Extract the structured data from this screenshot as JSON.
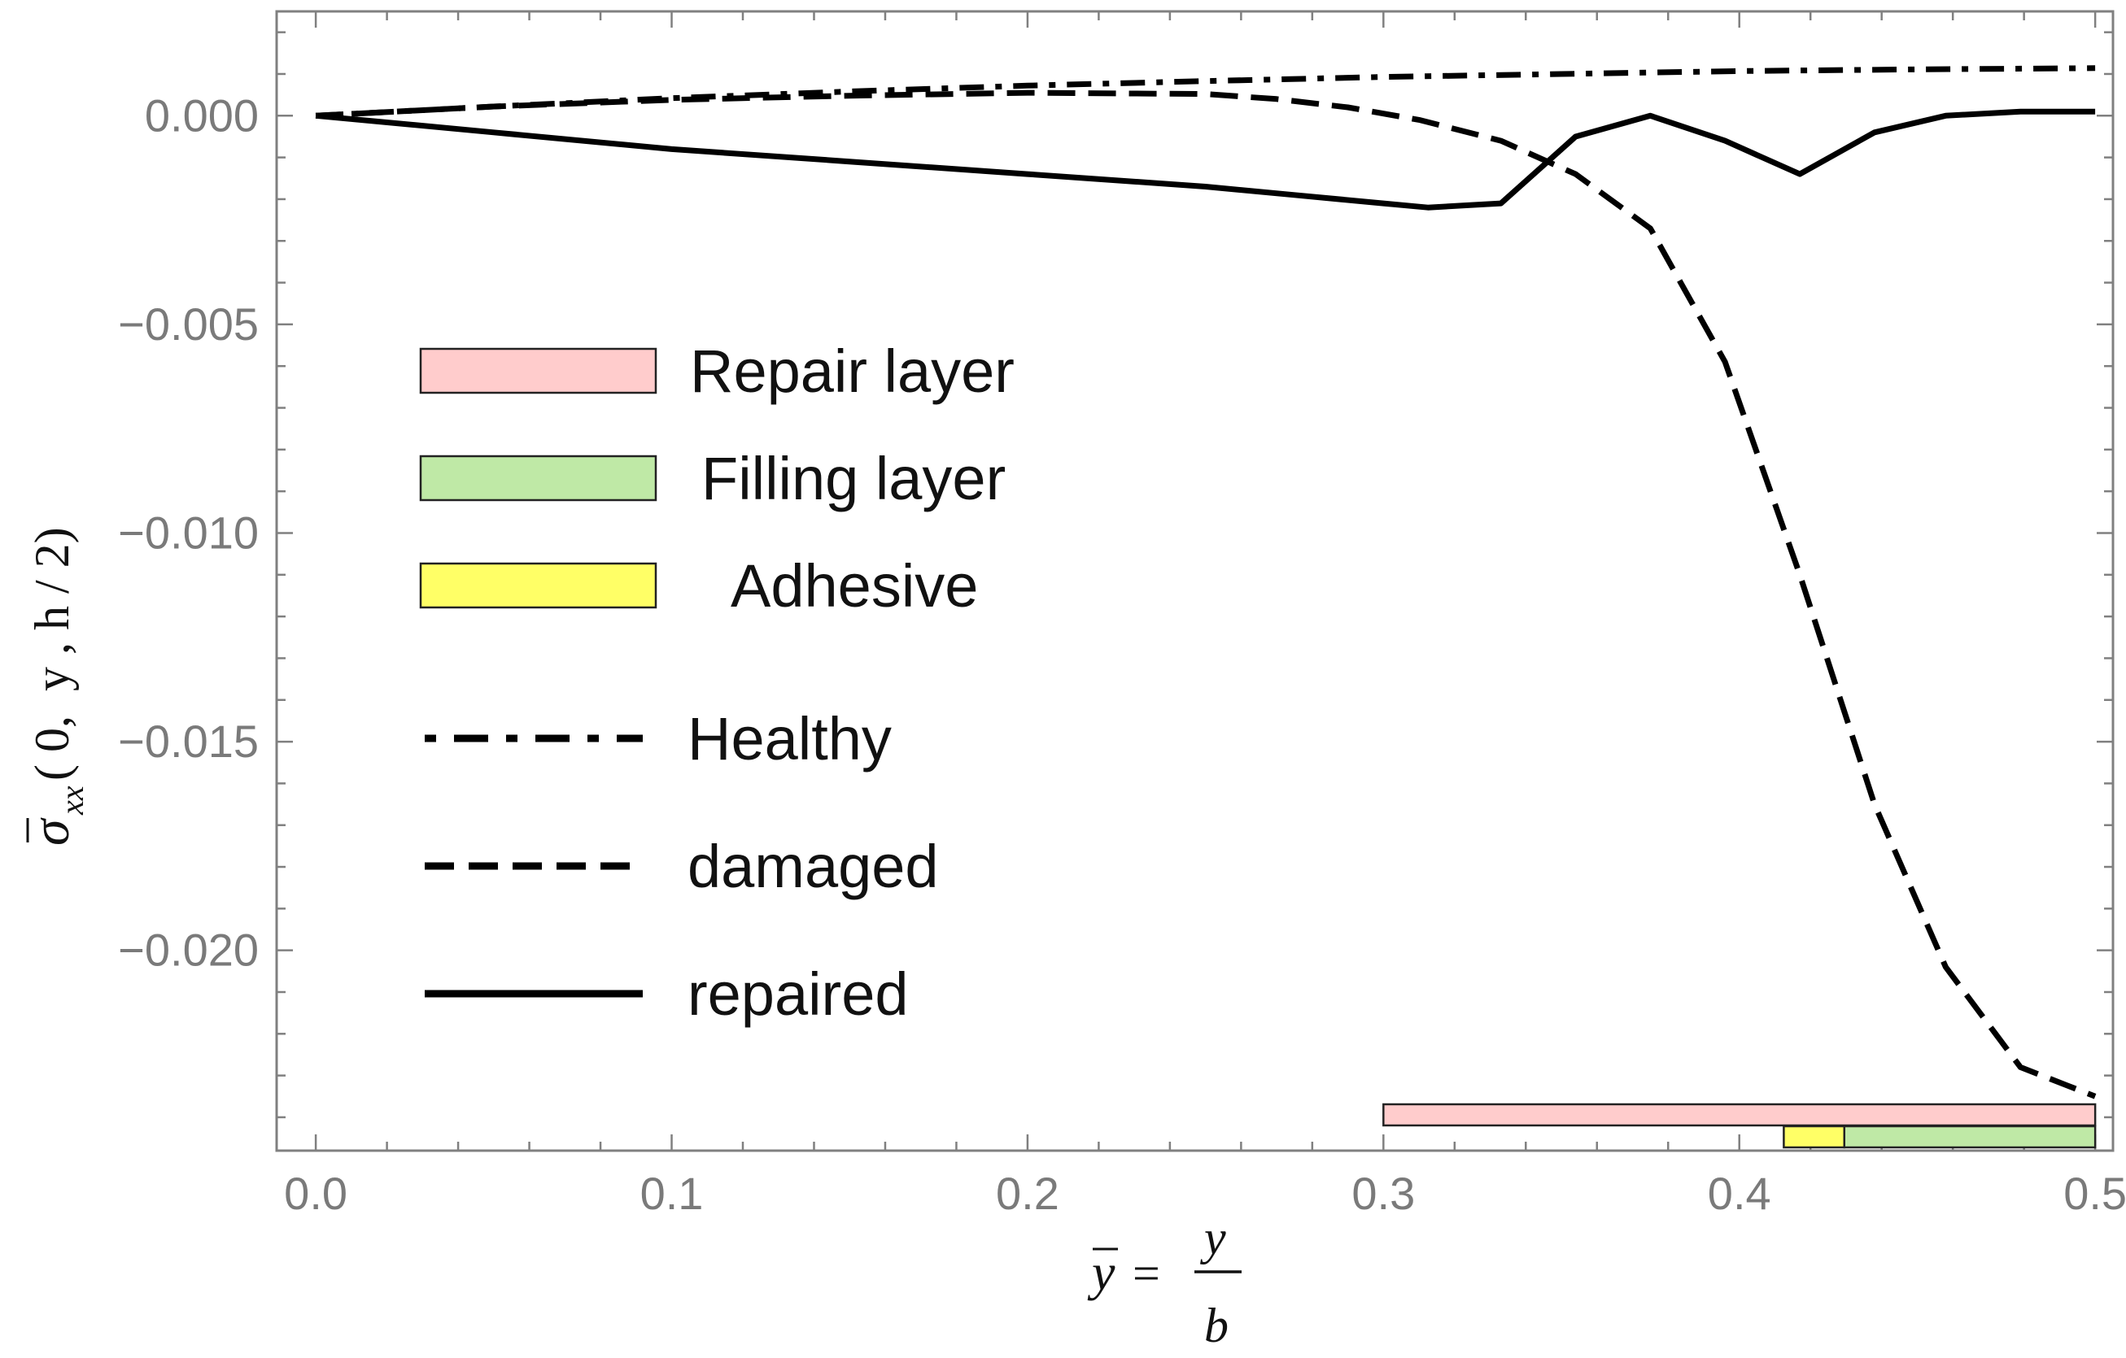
{
  "chart_data": {
    "type": "line",
    "title": "",
    "xlabel": {
      "ybar": "y",
      "equals": "=",
      "numerator": "y",
      "denominator": "b"
    },
    "ylabel": {
      "sigma": "σ",
      "subscript": "xx",
      "args": "( 0,  y , h / 2)"
    },
    "xlim": [
      -0.011,
      0.505
    ],
    "ylim": [
      -0.0248,
      0.0025
    ],
    "x_ticks": [
      {
        "value": 0.0,
        "label": "0.0"
      },
      {
        "value": 0.1,
        "label": "0.1"
      },
      {
        "value": 0.2,
        "label": "0.2"
      },
      {
        "value": 0.3,
        "label": "0.3"
      },
      {
        "value": 0.4,
        "label": "0.4"
      },
      {
        "value": 0.5,
        "label": "0.5"
      }
    ],
    "y_ticks": [
      {
        "value": 0.0,
        "label": "0.000"
      },
      {
        "value": -0.005,
        "label": "−0.005"
      },
      {
        "value": -0.01,
        "label": "−0.010"
      },
      {
        "value": -0.015,
        "label": "−0.015"
      },
      {
        "value": -0.02,
        "label": "−0.020"
      }
    ],
    "x_minor_step": 0.02,
    "y_minor_step": 0.001,
    "series": [
      {
        "name": "Healthy",
        "style": "dashdot",
        "x": [
          0,
          0.05,
          0.1,
          0.15,
          0.2,
          0.25,
          0.3,
          0.35,
          0.4,
          0.45,
          0.5
        ],
        "y": [
          0,
          0.00022,
          0.00042,
          0.00058,
          0.00072,
          0.00083,
          0.00093,
          0.001,
          0.00107,
          0.00111,
          0.00114
        ]
      },
      {
        "name": "damaged",
        "style": "dashed",
        "x": [
          0,
          0.05,
          0.1,
          0.15,
          0.2,
          0.25,
          0.27,
          0.29,
          0.31,
          0.333,
          0.354,
          0.375,
          0.396,
          0.417,
          0.438,
          0.458,
          0.479,
          0.5
        ],
        "y": [
          0,
          0.00022,
          0.00038,
          0.00048,
          0.00055,
          0.00052,
          0.0004,
          0.0002,
          -0.0001,
          -0.0006,
          -0.0014,
          -0.0027,
          -0.0059,
          -0.011,
          -0.0165,
          -0.0204,
          -0.0228,
          -0.0235
        ]
      },
      {
        "name": "repaired",
        "style": "solid",
        "x": [
          0,
          0.05,
          0.1,
          0.15,
          0.2,
          0.25,
          0.275,
          0.3,
          0.3125,
          0.333,
          0.354,
          0.375,
          0.396,
          0.417,
          0.438,
          0.458,
          0.479,
          0.5
        ],
        "y": [
          0,
          -0.0004,
          -0.0008,
          -0.0011,
          -0.0014,
          -0.0017,
          -0.0019,
          -0.0021,
          -0.0022,
          -0.0021,
          -0.0005,
          0.0,
          -0.0006,
          -0.0014,
          -0.0004,
          0.0,
          0.0001,
          0.0001
        ]
      }
    ],
    "bars": [
      {
        "name": "Repair layer",
        "x_start": 0.3,
        "x_end": 0.5,
        "row": 1,
        "color": "#ffcccc"
      },
      {
        "name": "Adhesive",
        "x_start": 0.4125,
        "x_end": 0.4295,
        "row": 0,
        "color": "#ffff66"
      },
      {
        "name": "Filling layer",
        "x_start": 0.4295,
        "x_end": 0.5,
        "row": 0,
        "color": "#bfe9a6"
      }
    ],
    "legend": [
      {
        "label": "Repair layer",
        "kind": "patch",
        "color": "#ffcccc"
      },
      {
        "label": "Filling layer",
        "kind": "patch",
        "color": "#bfe9a6"
      },
      {
        "label": "Adhesive",
        "kind": "patch",
        "color": "#ffff66"
      },
      {
        "label": "Healthy",
        "kind": "line",
        "style": "dashdot"
      },
      {
        "label": "damaged",
        "kind": "line",
        "style": "dashed"
      },
      {
        "label": "repaired",
        "kind": "line",
        "style": "solid"
      }
    ],
    "legend_position": "left-middle",
    "colors": {
      "line": "#000000",
      "frame": "#808080",
      "tick_text": "#7a7a7a",
      "patch_border": "#222222"
    }
  }
}
